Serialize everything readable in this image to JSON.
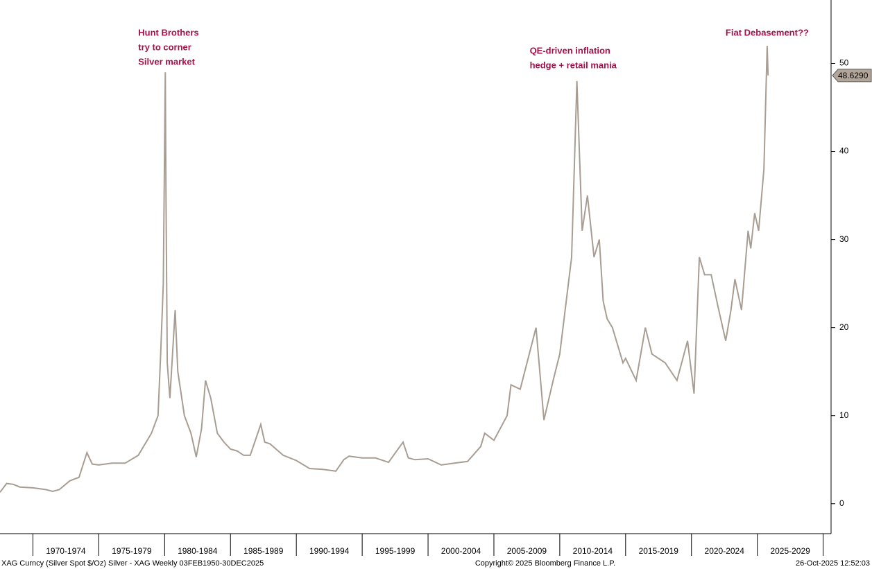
{
  "chart_data": {
    "type": "line",
    "annotations": [
      {
        "x": 1980.05,
        "lines": [
          "Hunt Brothers",
          "try to corner",
          "Silver market"
        ]
      },
      {
        "x": 2011.3,
        "lines": [
          "QE-driven inflation",
          "hedge + retail mania"
        ]
      },
      {
        "x": 2025.75,
        "lines": [
          "Fiat Debasement??"
        ]
      }
    ],
    "x": [
      1967.5,
      1968.0,
      1968.5,
      1969,
      1970,
      1971,
      1971.5,
      1972,
      1972.8,
      1973.5,
      1974.1,
      1974.5,
      1975,
      1976,
      1977,
      1978,
      1979,
      1979.5,
      1979.7,
      1979.9,
      1980.05,
      1980.1,
      1980.2,
      1980.4,
      1980.6,
      1980.8,
      1981,
      1981.5,
      1982,
      1982.4,
      1982.8,
      1983.1,
      1983.5,
      1984,
      1984.5,
      1985,
      1985.5,
      1986,
      1986.5,
      1987.3,
      1987.6,
      1988,
      1989,
      1990,
      1991,
      1992,
      1993,
      1993.6,
      1994,
      1995,
      1996,
      1997,
      1998.1,
      1998.5,
      1999,
      2000,
      2001,
      2002,
      2003,
      2004,
      2004.3,
      2005,
      2006,
      2006.3,
      2007,
      2008.2,
      2008.8,
      2009.5,
      2010,
      2010.9,
      2011.3,
      2011.7,
      2012.1,
      2012.6,
      2013,
      2013.3,
      2013.6,
      2014,
      2014.8,
      2015,
      2015.8,
      2016.5,
      2017,
      2018,
      2018.9,
      2019.7,
      2020.2,
      2020.6,
      2021,
      2021.5,
      2022,
      2022.6,
      2023,
      2023.3,
      2023.8,
      2024.3,
      2024.5,
      2024.8,
      2025.1,
      2025.5,
      2025.75,
      2025.82
    ],
    "series": [
      {
        "name": "XAG Curncy",
        "color": "#a89d92",
        "values": [
          1.3,
          2.3,
          2.2,
          1.9,
          1.8,
          1.6,
          1.4,
          1.6,
          2.6,
          3.0,
          5.8,
          4.5,
          4.4,
          4.6,
          4.6,
          5.5,
          8.0,
          10,
          17,
          25,
          49,
          36,
          16,
          12,
          17,
          22,
          15,
          10,
          8,
          5.3,
          8.5,
          14,
          12,
          8,
          7,
          6.2,
          6.0,
          5.5,
          5.5,
          9.0,
          7.0,
          6.8,
          5.5,
          4.9,
          4.0,
          3.9,
          3.7,
          5.0,
          5.4,
          5.2,
          5.2,
          4.7,
          7.0,
          5.2,
          5.0,
          5.1,
          4.4,
          4.6,
          4.8,
          6.5,
          8.0,
          7.2,
          10,
          13.5,
          13,
          20,
          9.5,
          14,
          17,
          28,
          48,
          31,
          35,
          28,
          30,
          23,
          21,
          20,
          16,
          16.5,
          14,
          20,
          17,
          16,
          14,
          18.5,
          12.5,
          28,
          26,
          26,
          22.5,
          18.5,
          22,
          25.5,
          22,
          31,
          29,
          33,
          31,
          38,
          52,
          48.629
        ]
      }
    ],
    "last_value": {
      "value": 48.629,
      "label": "48.6290"
    },
    "xlim": [
      1967.5,
      2030.6
    ],
    "ylim": [
      -3.4,
      57.2
    ],
    "xticks": [
      1970,
      1975,
      1980,
      1985,
      1990,
      1995,
      2000,
      2005,
      2010,
      2015,
      2020,
      2025,
      2030
    ],
    "periods": [
      "1970-1974",
      "1975-1979",
      "1980-1984",
      "1985-1989",
      "1990-1994",
      "1995-1999",
      "2000-2004",
      "2005-2009",
      "2010-2014",
      "2015-2019",
      "2020-2024",
      "2025-2029"
    ],
    "yticks": [
      0,
      10,
      20,
      30,
      40,
      50
    ],
    "footer": {
      "left": "XAG Curncy (Silver Spot  $/Oz) Silver - XAG Weekly 03FEB1950-30DEC2025",
      "center": "Copyright© 2025 Bloomberg Finance L.P.",
      "right": "26-Oct-2025 12:52:03"
    }
  }
}
